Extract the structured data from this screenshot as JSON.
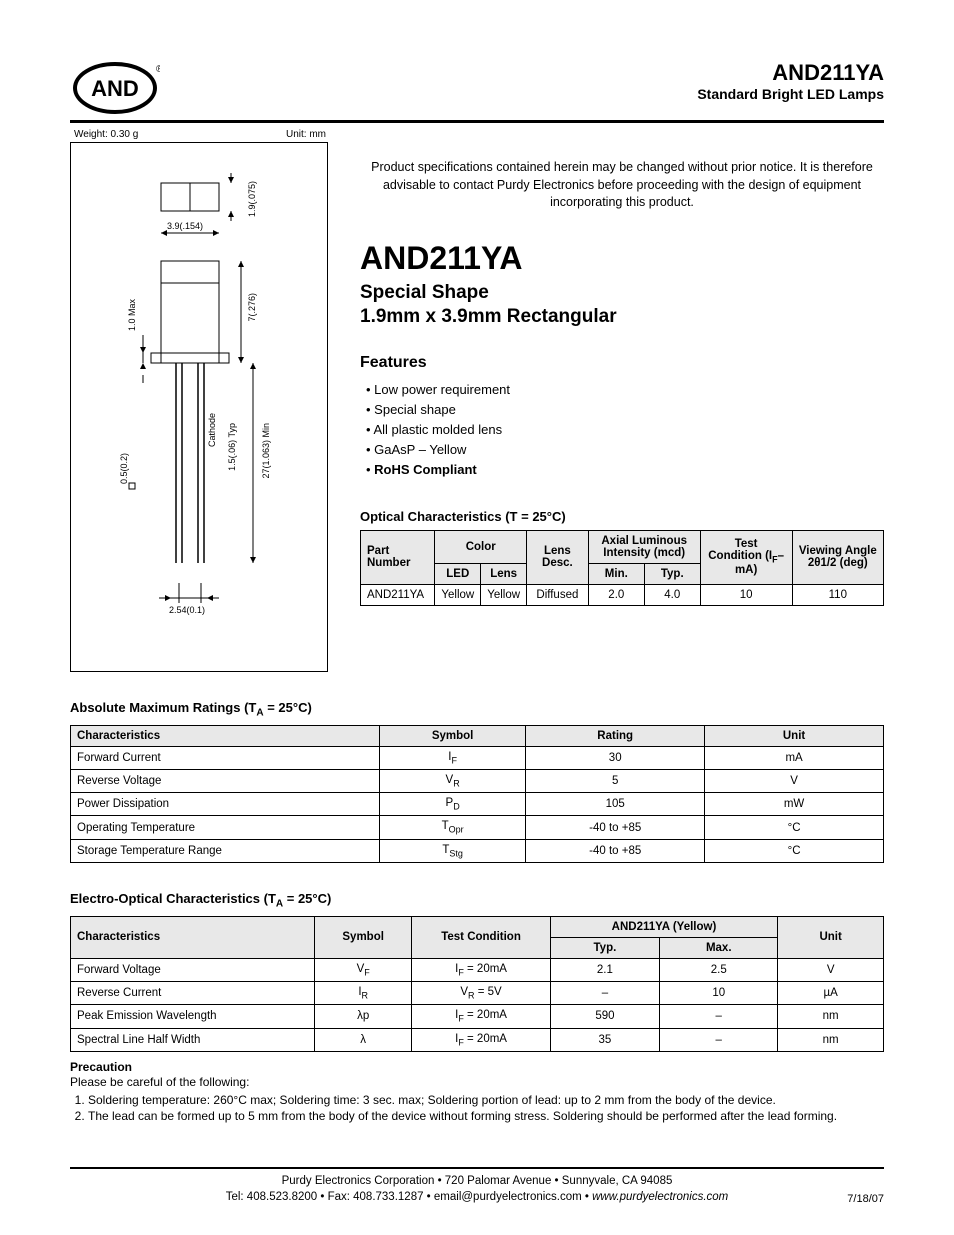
{
  "header": {
    "logo_text": "AND",
    "part_number": "AND211YA",
    "subtitle": "Standard Bright LED Lamps"
  },
  "diagram": {
    "weight_label": "Weight: 0.30 g",
    "unit_label": "Unit: mm",
    "dim_top_h": "1.9(.075)",
    "dim_top_w": "3.9(.154)",
    "dim_body_h": "7(.276)",
    "dim_body_side": "1.0 Max",
    "cathode": "Cathode",
    "lead_len": "27(1.063) Min",
    "lead_pitch_typ": "1.5(.06) Typ",
    "lead_thick": "0.5(0.2)",
    "lead_pitch": "2.54(0.1)"
  },
  "intro": {
    "disclaimer": "Product specifications contained herein may be changed without prior notice. It is therefore advisable to contact Purdy Electronics before proceeding with the design of equipment incorporating this product.",
    "title": "AND211YA",
    "subtitle1": "Special Shape",
    "subtitle2": "1.9mm x 3.9mm Rectangular",
    "features_hdr": "Features",
    "features": [
      "Low power requirement",
      "Special shape",
      "All plastic molded lens",
      "GaAsP – Yellow"
    ],
    "features_bold": "RoHS Compliant"
  },
  "optical": {
    "title": "Optical Characteristics (T = 25°C)",
    "headers": {
      "part": "Part Number",
      "color": "Color",
      "led": "LED",
      "lens": "Lens",
      "lens_desc": "Lens Desc.",
      "axial": "Axial Luminous Intensity (mcd)",
      "min": "Min.",
      "typ": "Typ.",
      "test": "Test Condition (I",
      "test_sub": "F",
      "test_end": "–mA)",
      "view": "Viewing Angle 2θ1/2 (deg)"
    },
    "row": {
      "part": "AND211YA",
      "led": "Yellow",
      "lens": "Yellow",
      "desc": "Diffused",
      "min": "2.0",
      "typ": "4.0",
      "test": "10",
      "angle": "110"
    }
  },
  "abs_max": {
    "title": "Absolute Maximum Ratings (T",
    "title_sub": "A",
    "title_end": " = 25°C)",
    "headers": {
      "char": "Characteristics",
      "sym": "Symbol",
      "rating": "Rating",
      "unit": "Unit"
    },
    "rows": [
      {
        "char": "Forward Current",
        "sym": "I",
        "sub": "F",
        "rating": "30",
        "unit": "mA"
      },
      {
        "char": "Reverse Voltage",
        "sym": "V",
        "sub": "R",
        "rating": "5",
        "unit": "V"
      },
      {
        "char": "Power Dissipation",
        "sym": "P",
        "sub": "D",
        "rating": "105",
        "unit": "mW"
      },
      {
        "char": "Operating Temperature",
        "sym": "T",
        "sub": "Opr",
        "rating": "-40 to +85",
        "unit": "°C"
      },
      {
        "char": "Storage Temperature Range",
        "sym": "T",
        "sub": "Stg",
        "rating": "-40 to +85",
        "unit": "°C"
      }
    ]
  },
  "electro": {
    "title": "Electro-Optical Characteristics (T",
    "title_sub": "A",
    "title_end": " = 25°C)",
    "headers": {
      "char": "Characteristics",
      "sym": "Symbol",
      "test": "Test Condition",
      "group": "AND211YA (Yellow)",
      "typ": "Typ.",
      "max": "Max.",
      "unit": "Unit"
    },
    "rows": [
      {
        "char": "Forward Voltage",
        "sym": "V",
        "sub": "F",
        "test_pre": "I",
        "test_sub": "F",
        "test_post": " = 20mA",
        "typ": "2.1",
        "max": "2.5",
        "unit": "V"
      },
      {
        "char": "Reverse Current",
        "sym": "I",
        "sub": "R",
        "test_pre": "V",
        "test_sub": "R",
        "test_post": " = 5V",
        "typ": "–",
        "max": "10",
        "unit": "µA"
      },
      {
        "char": "Peak Emission Wavelength",
        "sym": "λp",
        "sub": "",
        "test_pre": "I",
        "test_sub": "F",
        "test_post": " = 20mA",
        "typ": "590",
        "max": "–",
        "unit": "nm"
      },
      {
        "char": "Spectral Line Half Width",
        "sym": "λ",
        "sub": "",
        "test_pre": "I",
        "test_sub": "F",
        "test_post": " = 20mA",
        "typ": "35",
        "max": "–",
        "unit": "nm"
      }
    ]
  },
  "precaution": {
    "hdr": "Precaution",
    "intro": "Please be careful of the following:",
    "items": [
      "Soldering temperature: 260°C max; Soldering time: 3 sec. max; Soldering portion of lead: up to 2 mm from the body of the device.",
      "The lead can be formed up to 5 mm from the body of the device without forming stress. Soldering should be performed after the lead forming."
    ]
  },
  "footer": {
    "line1": "Purdy Electronics Corporation  •  720 Palomar Avenue  •  Sunnyvale, CA 94085",
    "line2_pre": "Tel: 408.523.8200  •  Fax: 408.733.1287  •  email@purdyelectronics.com  •  ",
    "line2_site": "www.purdyelectronics.com",
    "date": "7/18/07"
  }
}
